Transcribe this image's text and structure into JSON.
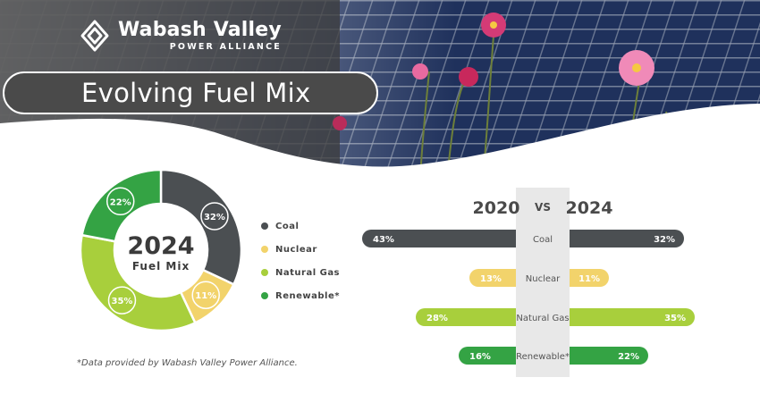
{
  "header": {
    "org_name": "Wabash Valley",
    "org_sub": "POWER ALLIANCE",
    "title": "Evolving Fuel Mix"
  },
  "colors": {
    "coal": "#4b4f52",
    "nuclear": "#f2d36b",
    "natural_gas": "#a8cf3c",
    "renewable": "#34a344",
    "banner": "#4a4a4a"
  },
  "icons": [
    "logo-mark-icon",
    "legend-dot-icon"
  ],
  "chart_data": [
    {
      "type": "pie",
      "title": "2024",
      "subtitle": "Fuel Mix",
      "slices": [
        {
          "name": "Coal",
          "value": 32,
          "label": "32%"
        },
        {
          "name": "Nuclear",
          "value": 11,
          "label": "11%"
        },
        {
          "name": "Natural Gas",
          "value": 35,
          "label": "35%"
        },
        {
          "name": "Renewable*",
          "value": 22,
          "label": "22%"
        }
      ],
      "legend": [
        "Coal",
        "Nuclear",
        "Natural Gas",
        "Renewable*"
      ],
      "legend_position": "right"
    },
    {
      "type": "bar",
      "orientation": "horizontal-butterfly",
      "left_label": "2020",
      "vs_label": "VS",
      "right_label": "2024",
      "categories": [
        "Coal",
        "Nuclear",
        "Natural Gas",
        "Renewable*"
      ],
      "series": [
        {
          "name": "2020",
          "values": [
            43,
            13,
            28,
            16
          ],
          "labels": [
            "43%",
            "13%",
            "28%",
            "16%"
          ]
        },
        {
          "name": "2024",
          "values": [
            32,
            11,
            35,
            22
          ],
          "labels": [
            "32%",
            "11%",
            "35%",
            "22%"
          ]
        }
      ]
    }
  ],
  "footnote": "*Data provided by Wabash Valley Power Alliance."
}
